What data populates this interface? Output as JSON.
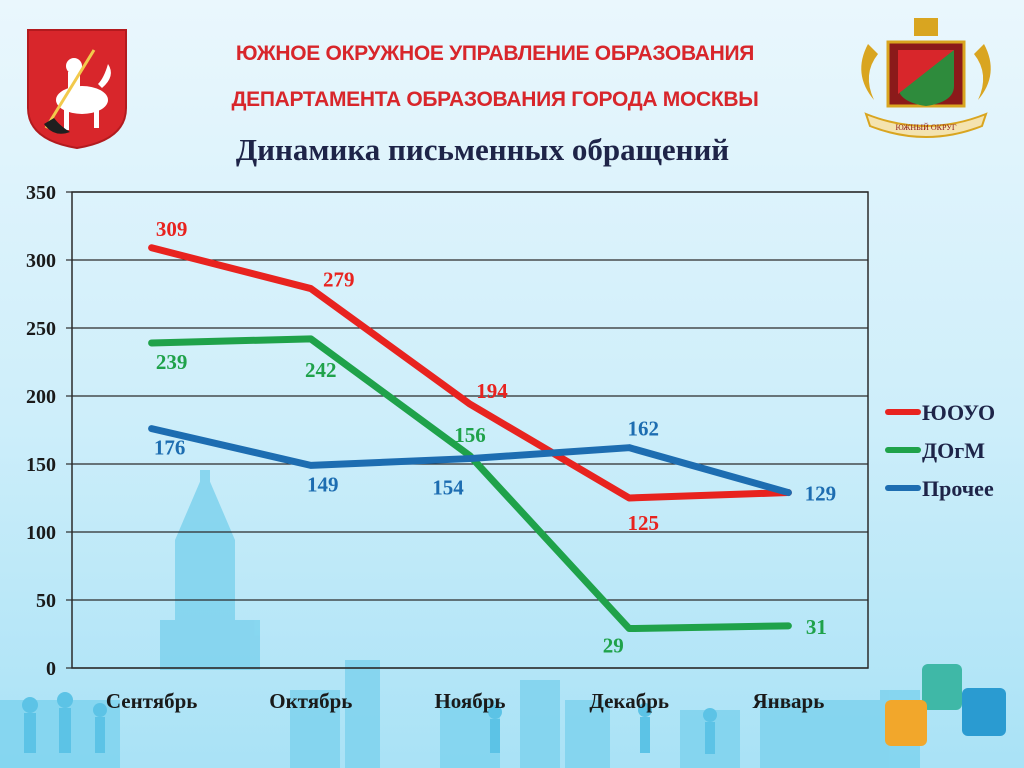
{
  "header": {
    "line1": "ЮЖНОЕ ОКРУЖНОЕ УПРАВЛЕНИЕ ОБРАЗОВАНИЯ",
    "line2": "ДЕПАРТАМЕНТА ОБРАЗОВАНИЯ ГОРОДА МОСКВЫ"
  },
  "emblems": {
    "left_icon": "moscow-coat-of-arms-icon",
    "right_icon": "southern-district-coat-of-arms-icon",
    "right_ribbon_text": "ЮЖНЫЙ ОКРУГ"
  },
  "chart_data": {
    "type": "line",
    "title": "Динамика письменных обращений",
    "categories": [
      "Сентябрь",
      "Октябрь",
      "Ноябрь",
      "Декабрь",
      "Январь"
    ],
    "ylim": [
      0,
      350
    ],
    "yticks": [
      0,
      50,
      100,
      150,
      200,
      250,
      300,
      350
    ],
    "grid": true,
    "legend_position": "right",
    "series": [
      {
        "name": "ЮОУО",
        "color": "#e8231f",
        "values": [
          309,
          279,
          194,
          125,
          129
        ]
      },
      {
        "name": "ДОгМ",
        "color": "#1fa24a",
        "values": [
          239,
          242,
          156,
          29,
          31
        ]
      },
      {
        "name": "Прочее",
        "color": "#1d6db1",
        "values": [
          176,
          149,
          154,
          162,
          129
        ]
      }
    ]
  }
}
